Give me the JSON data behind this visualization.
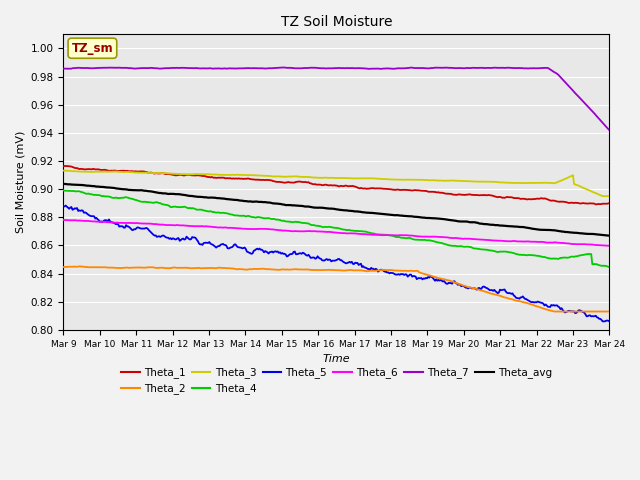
{
  "title": "TZ Soil Moisture",
  "xlabel": "Time",
  "ylabel": "Soil Moisture (mV)",
  "ylim": [
    0.8,
    1.01
  ],
  "background_color": "#e8e8e8",
  "grid_color": "#ffffff",
  "fig_facecolor": "#f2f2f2",
  "legend_label": "TZ_sm",
  "legend_box_facecolor": "#ffffcc",
  "legend_text_color": "#990000",
  "legend_box_edgecolor": "#999900",
  "xtick_labels": [
    "Mar 9",
    "Mar 10",
    "Mar 11",
    "Mar 12",
    "Mar 13",
    "Mar 14",
    "Mar 15",
    "Mar 16",
    "Mar 17",
    "Mar 18",
    "Mar 19",
    "Mar 20",
    "Mar 21",
    "Mar 22",
    "Mar 23",
    "Mar 24"
  ],
  "series_colors": {
    "Theta_1": "#cc0000",
    "Theta_2": "#ff8800",
    "Theta_3": "#cccc00",
    "Theta_4": "#00cc00",
    "Theta_5": "#0000ee",
    "Theta_6": "#ff00ff",
    "Theta_7": "#9900cc",
    "Theta_avg": "#000000"
  },
  "n_points": 480
}
